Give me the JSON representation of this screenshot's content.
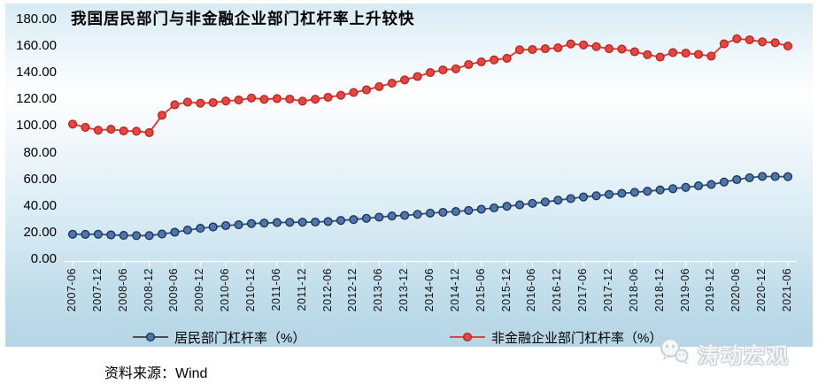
{
  "title": "我国居民部门与非金融企业部门杠杆率上升较快",
  "source": {
    "label": "资料来源：Wind"
  },
  "watermark": {
    "icon": "wechat-icon",
    "text": "涛动宏观",
    "color": "#c6cfd4"
  },
  "y_axis": {
    "labels": [
      "180.00",
      "160.00",
      "140.00",
      "120.00",
      "100.00",
      "80.00",
      "60.00",
      "40.00",
      "20.00",
      "0.00"
    ]
  },
  "chart_data": {
    "type": "line",
    "title": "我国居民部门与非金融企业部门杠杆率上升较快",
    "xlabel": "",
    "ylabel": "",
    "ylim": [
      0,
      180
    ],
    "ytick_step": 20,
    "grid": false,
    "legend_position": "bottom",
    "background": "light-blue vertical gradient",
    "x": [
      "2007-06",
      "2007-09",
      "2007-12",
      "2008-03",
      "2008-06",
      "2008-09",
      "2008-12",
      "2009-03",
      "2009-06",
      "2009-09",
      "2009-12",
      "2010-03",
      "2010-06",
      "2010-09",
      "2010-12",
      "2011-03",
      "2011-06",
      "2011-09",
      "2011-12",
      "2012-03",
      "2012-06",
      "2012-09",
      "2012-12",
      "2013-03",
      "2013-06",
      "2013-09",
      "2013-12",
      "2014-03",
      "2014-06",
      "2014-09",
      "2014-12",
      "2015-03",
      "2015-06",
      "2015-09",
      "2015-12",
      "2016-03",
      "2016-06",
      "2016-09",
      "2016-12",
      "2017-03",
      "2017-06",
      "2017-09",
      "2017-12",
      "2018-03",
      "2018-06",
      "2018-09",
      "2018-12",
      "2019-03",
      "2019-06",
      "2019-09",
      "2019-12",
      "2020-03",
      "2020-06",
      "2020-09",
      "2020-12",
      "2021-03",
      "2021-06"
    ],
    "x_tick_labels": [
      "2007-06",
      "2007-12",
      "2008-06",
      "2008-12",
      "2009-06",
      "2009-12",
      "2010-06",
      "2010-12",
      "2011-06",
      "2011-12",
      "2012-06",
      "2012-12",
      "2013-06",
      "2013-12",
      "2014-06",
      "2014-12",
      "2015-06",
      "2015-12",
      "2016-06",
      "2016-12",
      "2017-06",
      "2017-12",
      "2018-06",
      "2018-12",
      "2019-06",
      "2019-12",
      "2020-06",
      "2020-12",
      "2021-06"
    ],
    "series": [
      {
        "name": "居民部门杠杆率（%）",
        "marker_color": "#4a77b0",
        "marker_edge": "#1c2f52",
        "line_color": "#3f4e63",
        "values": [
          18.9,
          18.8,
          18.9,
          18.4,
          18.0,
          17.9,
          17.9,
          19.0,
          20.4,
          22.0,
          23.3,
          24.3,
          25.4,
          26.0,
          26.9,
          27.2,
          27.6,
          27.8,
          27.9,
          28.0,
          28.4,
          29.2,
          29.9,
          30.8,
          31.7,
          32.5,
          33.0,
          33.8,
          34.7,
          35.3,
          35.9,
          36.7,
          37.6,
          38.6,
          39.8,
          40.9,
          42.0,
          43.1,
          44.4,
          45.6,
          46.8,
          47.7,
          48.7,
          49.5,
          50.3,
          51.1,
          52.1,
          53.0,
          54.0,
          55.1,
          56.1,
          58.0,
          59.8,
          61.2,
          62.2,
          62.1,
          62.0
        ]
      },
      {
        "name": "非金融企业部门杠杆率（%）",
        "marker_color": "#e74540",
        "marker_edge": "#b52420",
        "line_color": "#e1312b",
        "values": [
          101.4,
          99.0,
          96.8,
          97.5,
          96.3,
          96.1,
          95.0,
          108.0,
          115.9,
          117.9,
          117.0,
          117.5,
          118.7,
          119.4,
          120.9,
          119.9,
          120.5,
          120.1,
          118.6,
          120.0,
          121.5,
          123.0,
          125.0,
          127.0,
          129.5,
          132.0,
          134.5,
          137.0,
          140.0,
          142.0,
          142.8,
          146.0,
          148.0,
          149.5,
          150.7,
          157.0,
          157.2,
          157.8,
          158.5,
          161.4,
          160.7,
          159.4,
          157.8,
          157.6,
          155.6,
          153.4,
          151.6,
          155.0,
          154.5,
          153.6,
          152.3,
          161.5,
          165.3,
          164.5,
          163.0,
          162.3,
          159.8
        ]
      }
    ]
  }
}
